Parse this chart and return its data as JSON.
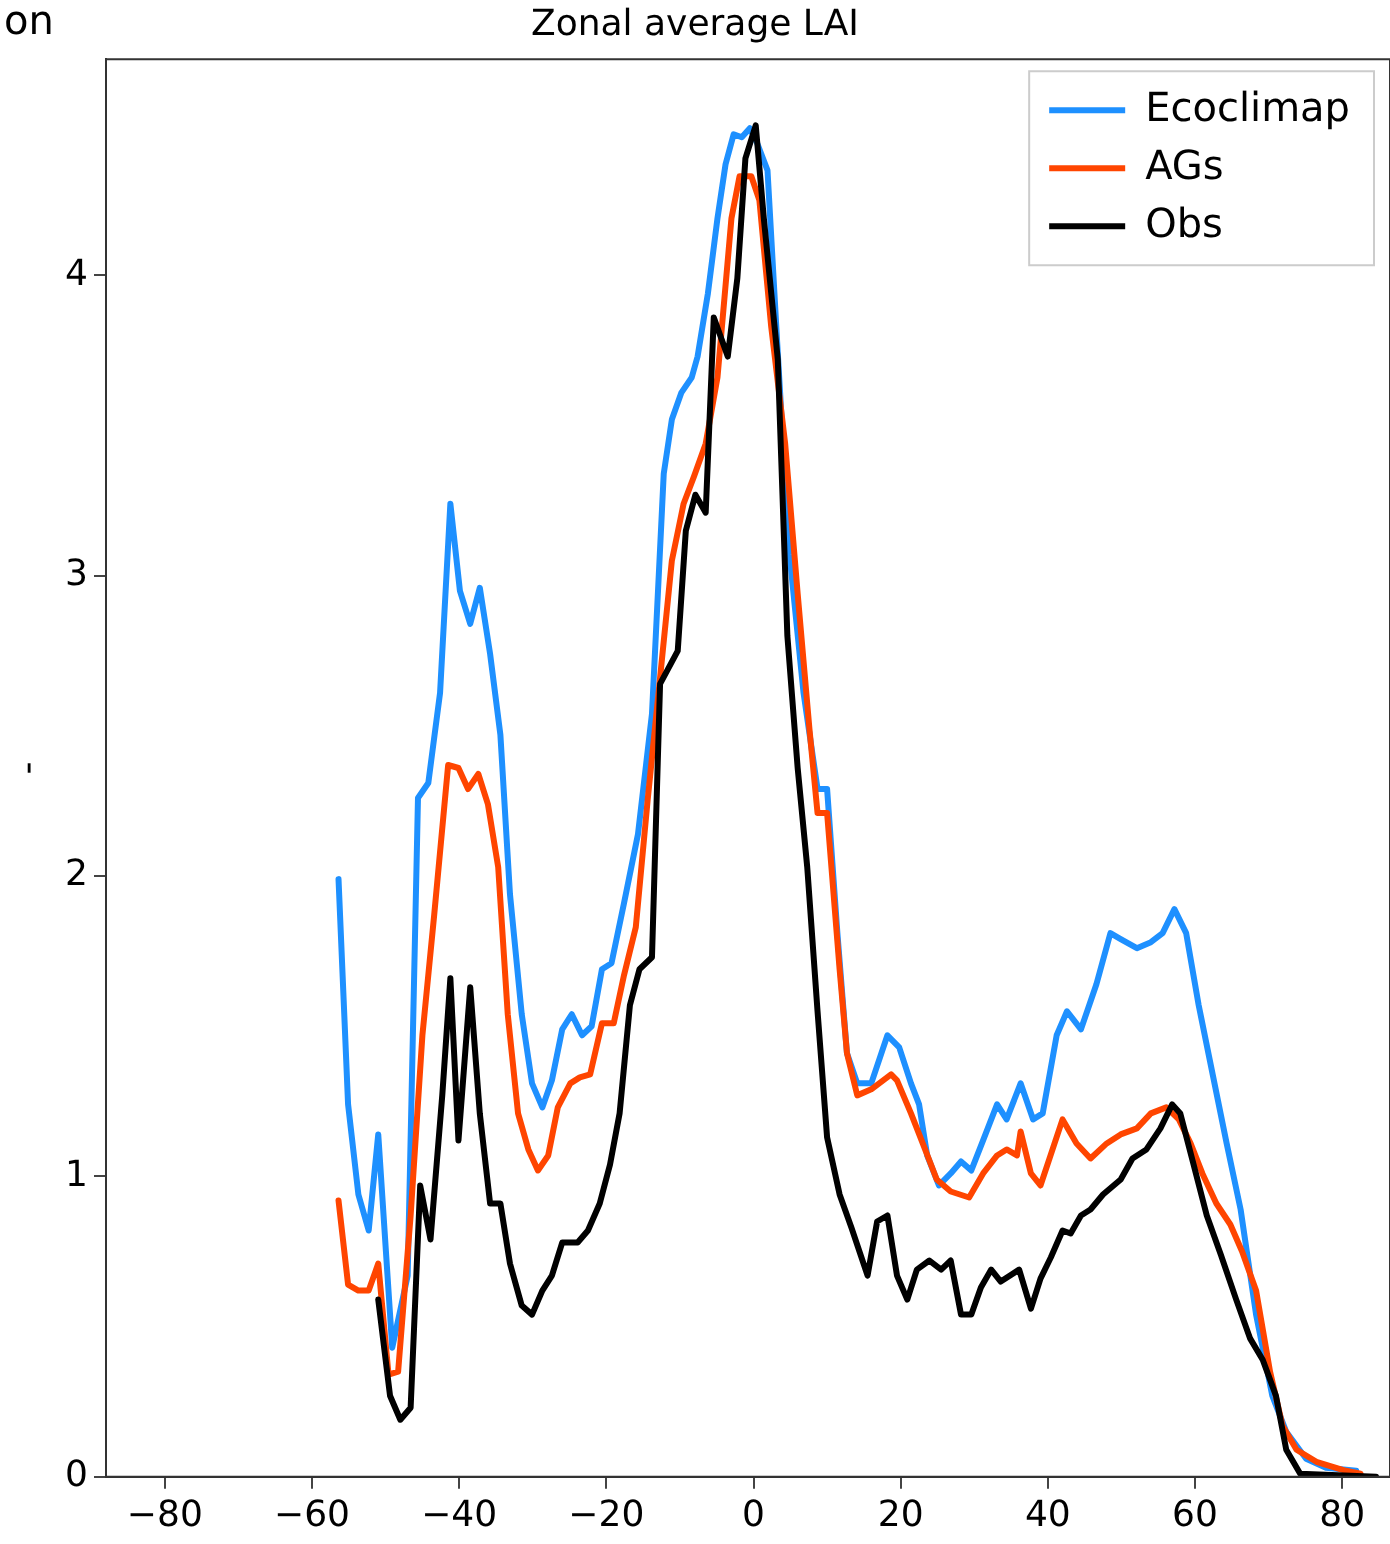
{
  "chart_data": {
    "type": "line",
    "title": "Zonal average LAI",
    "ylabel": "-",
    "annotations": [
      "on"
    ],
    "xlim": [
      -88,
      86.5
    ],
    "xticks": [
      -80,
      -60,
      -40,
      -20,
      0,
      20,
      40,
      60,
      80
    ],
    "ylim": [
      0,
      4.72
    ],
    "yticks": [
      0,
      1,
      2,
      3,
      4
    ],
    "grid": false,
    "legend": "top right",
    "marker": "none",
    "line_style": "solid",
    "series": [
      {
        "name": "Ecoclimap",
        "color": "#1e90ff",
        "x": [
          -56.4,
          -55.1,
          -53.7,
          -52.3,
          -51,
          -49.1,
          -47,
          -45.6,
          -44.2,
          -42.6,
          -41.2,
          -39.9,
          -38.5,
          -37.2,
          -35.8,
          -34.4,
          -33.1,
          -31.5,
          -30.1,
          -28.7,
          -27.4,
          -26,
          -24.7,
          -23.3,
          -22,
          -20.6,
          -19.3,
          -17.6,
          -15.7,
          -13.8,
          -12.2,
          -11.1,
          -9.8,
          -8.4,
          -7.6,
          -6.2,
          -4.9,
          -3.8,
          -2.7,
          -1.6,
          -0.5,
          0.5,
          1.9,
          3.3,
          4.9,
          6.8,
          8.7,
          10,
          11.4,
          12.7,
          14.1,
          16,
          18.2,
          19.8,
          21.4,
          22.5,
          23.6,
          25.2,
          26.8,
          28.2,
          29.6,
          31.2,
          33.1,
          34.4,
          36.3,
          38,
          39.3,
          41.2,
          42.6,
          44.5,
          46.6,
          48.5,
          49.9,
          52.1,
          54,
          55.6,
          57.2,
          58.8,
          60.5,
          62.4,
          64.3,
          66.2,
          68.3,
          70.5,
          72.4,
          75.1,
          77.8,
          81.9
        ],
        "values": [
          1.99,
          1.24,
          0.94,
          0.82,
          1.14,
          0.43,
          0.67,
          2.26,
          2.31,
          2.61,
          3.24,
          2.95,
          2.84,
          2.96,
          2.74,
          2.47,
          1.94,
          1.54,
          1.31,
          1.23,
          1.32,
          1.49,
          1.54,
          1.47,
          1.5,
          1.69,
          1.71,
          1.91,
          2.14,
          2.54,
          3.34,
          3.52,
          3.61,
          3.66,
          3.73,
          3.94,
          4.19,
          4.37,
          4.47,
          4.46,
          4.49,
          4.44,
          4.35,
          3.74,
          3.07,
          2.61,
          2.29,
          2.29,
          1.81,
          1.41,
          1.31,
          1.31,
          1.47,
          1.43,
          1.31,
          1.24,
          1.07,
          0.97,
          1.01,
          1.05,
          1.02,
          1.12,
          1.24,
          1.19,
          1.31,
          1.19,
          1.21,
          1.47,
          1.55,
          1.49,
          1.64,
          1.81,
          1.79,
          1.76,
          1.78,
          1.81,
          1.89,
          1.81,
          1.57,
          1.34,
          1.11,
          0.89,
          0.54,
          0.27,
          0.15,
          0.06,
          0.03,
          0.02
        ]
      },
      {
        "name": "AGs",
        "color": "#ff4500",
        "x": [
          -56.4,
          -55.1,
          -53.7,
          -52.3,
          -51,
          -49.6,
          -48.3,
          -46.6,
          -45,
          -43.4,
          -41.5,
          -40.1,
          -38.8,
          -37.4,
          -36.1,
          -34.7,
          -33.4,
          -32,
          -30.6,
          -29.3,
          -27.9,
          -26.6,
          -24.9,
          -23.6,
          -22.2,
          -20.6,
          -19,
          -17.6,
          -16,
          -14.4,
          -12.7,
          -11.1,
          -9.5,
          -8.1,
          -6.5,
          -4.9,
          -3,
          -1.9,
          -0.3,
          0.8,
          2.4,
          4.3,
          6,
          7.6,
          8.7,
          10,
          11.7,
          12.7,
          14.1,
          16,
          18.7,
          19.5,
          21.4,
          23,
          24.9,
          26.8,
          29.3,
          31.2,
          33.1,
          34.4,
          35.8,
          36.3,
          37.7,
          39,
          42,
          43.9,
          45.8,
          48,
          49.9,
          52.1,
          54,
          56.1,
          57.8,
          59.4,
          61,
          62.9,
          64.8,
          66.4,
          68.3,
          70.2,
          71.9,
          73.8,
          76.5,
          80.5,
          82.5
        ],
        "values": [
          0.92,
          0.64,
          0.62,
          0.62,
          0.71,
          0.34,
          0.35,
          0.87,
          1.47,
          1.87,
          2.37,
          2.36,
          2.29,
          2.34,
          2.24,
          2.03,
          1.54,
          1.21,
          1.09,
          1.02,
          1.07,
          1.23,
          1.31,
          1.33,
          1.34,
          1.51,
          1.51,
          1.67,
          1.83,
          2.25,
          2.66,
          3.05,
          3.24,
          3.33,
          3.44,
          3.66,
          4.19,
          4.33,
          4.33,
          4.25,
          3.83,
          3.44,
          2.94,
          2.49,
          2.21,
          2.21,
          1.69,
          1.41,
          1.27,
          1.29,
          1.34,
          1.32,
          1.21,
          1.11,
          0.99,
          0.95,
          0.93,
          1.01,
          1.07,
          1.09,
          1.07,
          1.15,
          1.01,
          0.97,
          1.19,
          1.11,
          1.06,
          1.11,
          1.14,
          1.16,
          1.21,
          1.23,
          1.19,
          1.11,
          1.01,
          0.91,
          0.84,
          0.75,
          0.62,
          0.35,
          0.17,
          0.09,
          0.05,
          0.02,
          0.01
        ]
      },
      {
        "name": "Obs",
        "color": "#000000",
        "x": [
          -51,
          -49.4,
          -48,
          -46.6,
          -45.3,
          -43.9,
          -42.3,
          -41.2,
          -40.1,
          -38.5,
          -37.2,
          -35.8,
          -34.4,
          -33.1,
          -31.5,
          -30.1,
          -28.7,
          -27.4,
          -26,
          -23.9,
          -22.5,
          -20.9,
          -19.5,
          -18.2,
          -16.8,
          -15.5,
          -13.8,
          -12.7,
          -10.3,
          -9.2,
          -7.9,
          -6.5,
          -5.4,
          -3.5,
          -2.2,
          -1.1,
          0.3,
          1.4,
          3.3,
          4.6,
          6,
          7.3,
          8.7,
          10,
          11.7,
          13.3,
          15.5,
          16.8,
          18.2,
          19.5,
          20.9,
          22.2,
          23.9,
          25.5,
          26.8,
          28.2,
          29.6,
          30.9,
          32.3,
          33.6,
          36.1,
          37.7,
          39,
          40.4,
          42,
          43.1,
          44.5,
          45.8,
          47.5,
          49.9,
          51.5,
          53.4,
          55.3,
          56.9,
          58,
          59.7,
          61.6,
          63.5,
          65.6,
          67.5,
          69.2,
          71,
          72.4,
          74.3,
          84.6
        ],
        "values": [
          0.59,
          0.27,
          0.19,
          0.23,
          0.97,
          0.79,
          1.27,
          1.66,
          1.12,
          1.63,
          1.21,
          0.91,
          0.91,
          0.71,
          0.57,
          0.54,
          0.62,
          0.67,
          0.78,
          0.78,
          0.82,
          0.91,
          1.04,
          1.21,
          1.57,
          1.69,
          1.73,
          2.64,
          2.75,
          3.15,
          3.27,
          3.21,
          3.86,
          3.73,
          3.99,
          4.39,
          4.5,
          4.19,
          3.72,
          2.8,
          2.36,
          2.03,
          1.55,
          1.13,
          0.94,
          0.83,
          0.67,
          0.85,
          0.87,
          0.67,
          0.59,
          0.69,
          0.72,
          0.69,
          0.72,
          0.54,
          0.54,
          0.63,
          0.69,
          0.65,
          0.69,
          0.56,
          0.66,
          0.73,
          0.82,
          0.81,
          0.87,
          0.89,
          0.94,
          0.99,
          1.06,
          1.09,
          1.16,
          1.24,
          1.21,
          1.05,
          0.87,
          0.74,
          0.59,
          0.46,
          0.39,
          0.27,
          0.09,
          0.01,
          0
        ]
      }
    ]
  }
}
